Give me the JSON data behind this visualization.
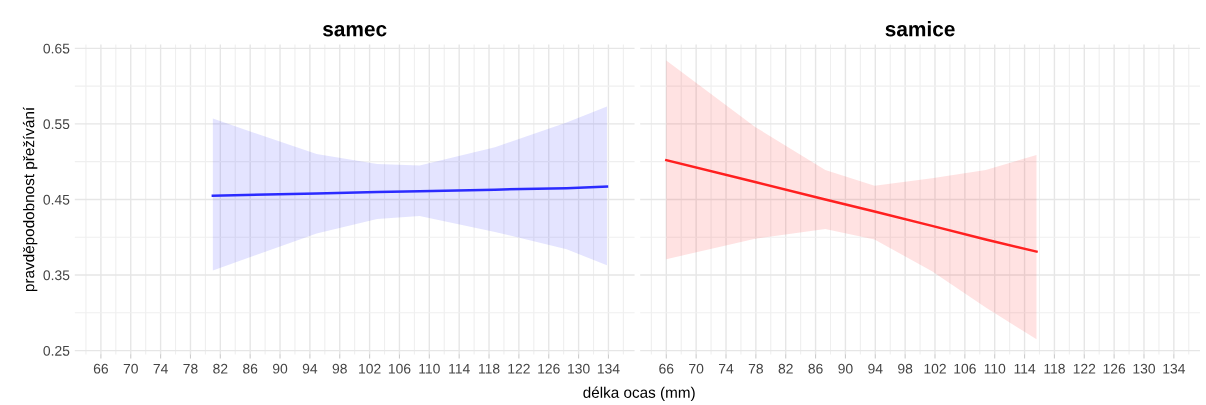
{
  "chart_data": [
    {
      "type": "line",
      "title": "samec",
      "xlabel": "délka ocas (mm)",
      "ylabel": "pravděpodobnost přežívání",
      "xlim": [
        62.5,
        137.5
      ],
      "xticks": [
        66,
        70,
        74,
        78,
        82,
        86,
        90,
        94,
        98,
        102,
        106,
        110,
        114,
        118,
        122,
        126,
        130,
        134
      ],
      "ylim": [
        0.245,
        0.655
      ],
      "yticks": [
        0.25,
        0.35,
        0.45,
        0.55,
        0.65
      ],
      "grid": true,
      "legend": false,
      "series": [
        {
          "color": "#2b2bff",
          "x": [
            81,
            94.9,
            103,
            108.7,
            118.8,
            128.4,
            133.8
          ],
          "values": [
            0.455,
            0.458,
            0.46,
            0.461,
            0.463,
            0.465,
            0.467
          ],
          "lower": [
            0.356,
            0.405,
            0.424,
            0.428,
            0.407,
            0.384,
            0.363
          ],
          "upper": [
            0.557,
            0.51,
            0.497,
            0.495,
            0.519,
            0.552,
            0.573
          ]
        }
      ]
    },
    {
      "type": "line",
      "title": "samice",
      "xlim": [
        62.5,
        137.5
      ],
      "xticks": [
        66,
        70,
        74,
        78,
        82,
        86,
        90,
        94,
        98,
        102,
        106,
        110,
        114,
        118,
        122,
        126,
        130,
        134
      ],
      "ylim": [
        0.245,
        0.655
      ],
      "yticks": [
        0.25,
        0.35,
        0.45,
        0.55,
        0.65
      ],
      "grid": true,
      "legend": false,
      "tick_labels": "x",
      "series": [
        {
          "color": "#ff2020",
          "x": [
            66,
            77.9,
            87.3,
            93.9,
            101.6,
            108.8,
            115.6
          ],
          "values": [
            0.502,
            0.473,
            0.45,
            0.434,
            0.415,
            0.397,
            0.381
          ],
          "lower": [
            0.371,
            0.398,
            0.411,
            0.397,
            0.355,
            0.307,
            0.265
          ],
          "upper": [
            0.634,
            0.546,
            0.489,
            0.468,
            0.478,
            0.489,
            0.509
          ]
        }
      ]
    }
  ]
}
